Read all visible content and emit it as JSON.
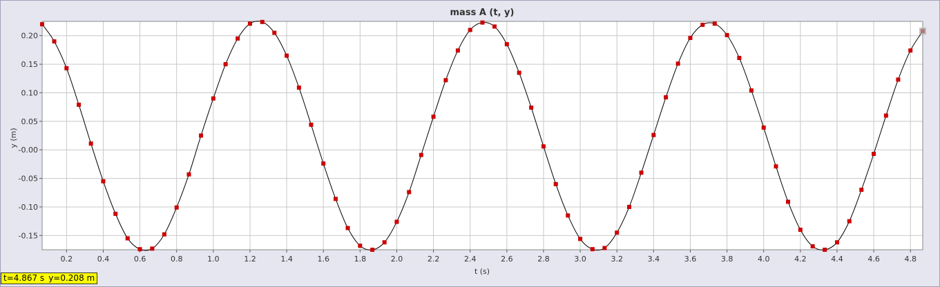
{
  "colors": {
    "background": "#e6e6f0",
    "plot_background": "#ffffff",
    "grid": "#c8c8c8",
    "line": "#000000",
    "marker": "#cc0000",
    "readout_background": "#ffff00",
    "cursor_marker": "#aaaaaa"
  },
  "readout": {
    "t_text": "t=4.867 s",
    "y_text": "y=0.208 m"
  },
  "chart_data": {
    "type": "line",
    "title": "mass A (t, y)",
    "xlabel": "t (s)",
    "ylabel": "y (m)",
    "xlim": [
      0.067,
      4.867
    ],
    "ylim": [
      -0.175,
      0.225
    ],
    "grid": true,
    "x_ticks": [
      0.2,
      0.4,
      0.6,
      0.8,
      1.0,
      1.2,
      1.4,
      1.6,
      1.8,
      2.0,
      2.2,
      2.4,
      2.6,
      2.8,
      3.0,
      3.2,
      3.4,
      3.6,
      3.8,
      4.0,
      4.2,
      4.4,
      4.6,
      4.8
    ],
    "x_tick_labels": [
      "0.2",
      "0.4",
      "0.6",
      "0.8",
      "1.0",
      "1.2",
      "1.4",
      "1.6",
      "1.8",
      "2.0",
      "2.2",
      "2.4",
      "2.6",
      "2.8",
      "3.0",
      "3.2",
      "3.4",
      "3.6",
      "3.8",
      "4.0",
      "4.2",
      "4.4",
      "4.6",
      "4.8"
    ],
    "y_ticks": [
      0.2,
      0.15,
      0.1,
      0.05,
      0.0,
      -0.05,
      -0.1,
      -0.15
    ],
    "y_tick_labels": [
      "0.20",
      "0.15",
      "0.10",
      "0.05",
      "-0.00",
      "-0.05",
      "-0.10",
      "-0.15"
    ],
    "series": [
      {
        "x": [
          0.067,
          0.133,
          0.2,
          0.267,
          0.333,
          0.4,
          0.467,
          0.533,
          0.6,
          0.667,
          0.733,
          0.8,
          0.867,
          0.933,
          1.0,
          1.067,
          1.133,
          1.2,
          1.267,
          1.333,
          1.4,
          1.467,
          1.533,
          1.6,
          1.667,
          1.733,
          1.8,
          1.867,
          1.933,
          2.0,
          2.067,
          2.133,
          2.2,
          2.267,
          2.333,
          2.4,
          2.467,
          2.533,
          2.6,
          2.667,
          2.733,
          2.8,
          2.867,
          2.933,
          3.0,
          3.067,
          3.133,
          3.2,
          3.267,
          3.333,
          3.4,
          3.467,
          3.533,
          3.6,
          3.667,
          3.733,
          3.8,
          3.867,
          3.933,
          4.0,
          4.067,
          4.133,
          4.2,
          4.267,
          4.333,
          4.4,
          4.467,
          4.533,
          4.6,
          4.667,
          4.733,
          4.8,
          4.867
        ],
        "y": [
          0.22,
          0.19,
          0.143,
          0.079,
          0.011,
          -0.055,
          -0.112,
          -0.155,
          -0.174,
          -0.173,
          -0.148,
          -0.101,
          -0.043,
          0.025,
          0.09,
          0.15,
          0.195,
          0.221,
          0.224,
          0.205,
          0.165,
          0.109,
          0.044,
          -0.024,
          -0.086,
          -0.137,
          -0.168,
          -0.175,
          -0.162,
          -0.126,
          -0.074,
          -0.009,
          0.058,
          0.122,
          0.174,
          0.21,
          0.223,
          0.216,
          0.185,
          0.135,
          0.074,
          0.006,
          -0.06,
          -0.115,
          -0.156,
          -0.174,
          -0.172,
          -0.145,
          -0.1,
          -0.04,
          0.026,
          0.092,
          0.151,
          0.196,
          0.219,
          0.221,
          0.201,
          0.161,
          0.104,
          0.039,
          -0.029,
          -0.091,
          -0.14,
          -0.169,
          -0.175,
          -0.162,
          -0.125,
          -0.07,
          -0.007,
          0.06,
          0.123,
          0.174,
          0.208
        ]
      }
    ]
  }
}
